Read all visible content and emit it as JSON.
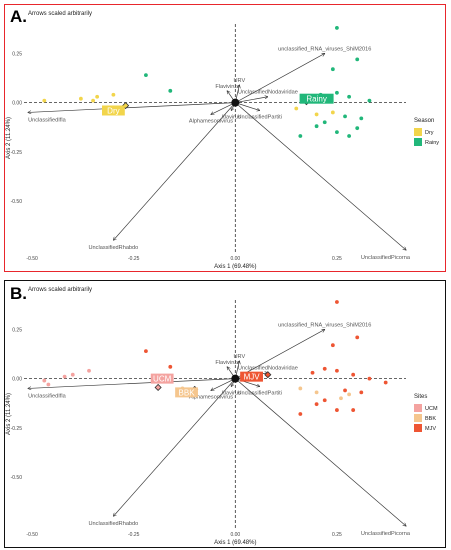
{
  "panels": [
    {
      "label": "A.",
      "border_color": "#e8262c",
      "legend": {
        "title": "Season",
        "entries": [
          {
            "name": "Dry",
            "color": "#f2d54b"
          },
          {
            "name": "Rainy",
            "color": "#21b77a"
          }
        ]
      }
    },
    {
      "label": "B.",
      "border_color": "#111111",
      "legend": {
        "title": "Sites",
        "entries": [
          {
            "name": "UCM",
            "color": "#f4a3a0"
          },
          {
            "name": "BBK",
            "color": "#f5c68e"
          },
          {
            "name": "MJV",
            "color": "#ee5533"
          }
        ]
      }
    }
  ],
  "chart_data": [
    {
      "type": "scatter",
      "title": "Arrows scaled arbitrarily",
      "xlabel": "Axis 1 (69.48%)",
      "ylabel": "Axis 2 (11.24%)",
      "xlim": [
        -0.52,
        0.42
      ],
      "ylim": [
        -0.76,
        0.4
      ],
      "xticks": [
        -0.5,
        -0.25,
        0.0,
        0.25
      ],
      "xtick_labels": [
        "-0.50",
        "-0.25",
        "0.00",
        "0.25"
      ],
      "yticks": [
        0.25,
        0.0,
        -0.25,
        -0.5
      ],
      "ytick_labels": [
        "0.25",
        "0.00",
        "-0.25",
        "-0.50"
      ],
      "grid": false,
      "reference_lines": {
        "x": 0,
        "y": 0,
        "style": "dashed"
      },
      "legend_position": "right",
      "series": [
        {
          "name": "Dry",
          "color": "#f2d54b",
          "points": [
            [
              -0.47,
              0.01
            ],
            [
              -0.38,
              0.02
            ],
            [
              -0.34,
              0.03
            ],
            [
              -0.35,
              0.01
            ],
            [
              -0.3,
              0.04
            ],
            [
              0.15,
              -0.03
            ],
            [
              0.2,
              -0.06
            ],
            [
              0.24,
              -0.05
            ]
          ]
        },
        {
          "name": "Rainy",
          "color": "#21b77a",
          "points": [
            [
              -0.22,
              0.14
            ],
            [
              -0.16,
              0.06
            ],
            [
              0.25,
              0.38
            ],
            [
              0.3,
              0.22
            ],
            [
              0.24,
              0.17
            ],
            [
              0.19,
              0.03
            ],
            [
              0.21,
              0.04
            ],
            [
              0.25,
              0.05
            ],
            [
              0.28,
              0.03
            ],
            [
              0.33,
              0.01
            ],
            [
              0.27,
              -0.07
            ],
            [
              0.31,
              -0.08
            ],
            [
              0.22,
              -0.1
            ],
            [
              0.2,
              -0.12
            ],
            [
              0.25,
              -0.15
            ],
            [
              0.16,
              -0.17
            ],
            [
              0.28,
              -0.17
            ],
            [
              0.3,
              -0.13
            ]
          ]
        }
      ],
      "centroids": [
        {
          "label": "Dry",
          "x": -0.3,
          "y": -0.04,
          "color": "#f2d54b",
          "diamond": [
            -0.27,
            -0.015
          ]
        },
        {
          "label": "Rainy",
          "x": 0.2,
          "y": 0.02,
          "color": "#21b77a",
          "diamond": [
            0.175,
            0.005
          ]
        }
      ],
      "vectors": [
        {
          "label": "unclassified_RNA_viruses_ShiM2016",
          "x": 0.22,
          "y": 0.25
        },
        {
          "label": "URV",
          "x": 0.01,
          "y": 0.09
        },
        {
          "label": "Flavivirus",
          "x": -0.02,
          "y": 0.06
        },
        {
          "label": "UnclassifiedNodaviridae",
          "x": 0.08,
          "y": 0.03
        },
        {
          "label": "UnclassifiedIfla",
          "x": -0.51,
          "y": -0.05
        },
        {
          "label": "Iflavirus",
          "x": -0.01,
          "y": -0.04
        },
        {
          "label": "UnclassifiedPartiti",
          "x": 0.06,
          "y": -0.04
        },
        {
          "label": "Alphamesonivirus",
          "x": -0.06,
          "y": -0.06
        },
        {
          "label": "UnclassifiedPicorna",
          "x": 0.42,
          "y": -0.75
        },
        {
          "label": "UnclassifiedRhabdo",
          "x": -0.3,
          "y": -0.7
        }
      ]
    },
    {
      "type": "scatter",
      "title": "Arrows scaled arbitrarily",
      "xlabel": "Axis 1 (69.48%)",
      "ylabel": "Axis 2 (11.24%)",
      "xlim": [
        -0.52,
        0.42
      ],
      "ylim": [
        -0.76,
        0.4
      ],
      "xticks": [
        -0.5,
        -0.25,
        0.0,
        0.25
      ],
      "xtick_labels": [
        "-0.50",
        "-0.25",
        "0.00",
        "0.25"
      ],
      "yticks": [
        0.25,
        0.0,
        -0.25,
        -0.5
      ],
      "ytick_labels": [
        "0.25",
        "0.00",
        "-0.25",
        "-0.50"
      ],
      "grid": false,
      "reference_lines": {
        "x": 0,
        "y": 0,
        "style": "dashed"
      },
      "legend_position": "right",
      "series": [
        {
          "name": "UCM",
          "color": "#f4a3a0",
          "points": [
            [
              -0.47,
              -0.01
            ],
            [
              -0.46,
              -0.03
            ],
            [
              -0.42,
              0.01
            ],
            [
              -0.4,
              0.02
            ],
            [
              -0.36,
              0.04
            ]
          ]
        },
        {
          "name": "BBK",
          "color": "#f5c68e",
          "points": [
            [
              -0.13,
              -0.05
            ],
            [
              0.16,
              -0.05
            ],
            [
              0.2,
              -0.07
            ],
            [
              0.26,
              -0.1
            ],
            [
              0.28,
              -0.08
            ]
          ]
        },
        {
          "name": "MJV",
          "color": "#ee5533",
          "points": [
            [
              -0.22,
              0.14
            ],
            [
              -0.16,
              0.06
            ],
            [
              0.25,
              0.39
            ],
            [
              0.3,
              0.21
            ],
            [
              0.24,
              0.17
            ],
            [
              0.19,
              0.03
            ],
            [
              0.22,
              0.05
            ],
            [
              0.25,
              0.04
            ],
            [
              0.29,
              0.02
            ],
            [
              0.33,
              0.0
            ],
            [
              0.27,
              -0.06
            ],
            [
              0.31,
              -0.07
            ],
            [
              0.22,
              -0.11
            ],
            [
              0.2,
              -0.13
            ],
            [
              0.25,
              -0.16
            ],
            [
              0.16,
              -0.18
            ],
            [
              0.29,
              -0.16
            ],
            [
              0.37,
              -0.02
            ]
          ]
        }
      ],
      "centroids": [
        {
          "label": "UCM",
          "x": -0.18,
          "y": 0.0,
          "color": "#f4a3a0",
          "diamond": [
            -0.19,
            -0.045
          ]
        },
        {
          "label": "BBK",
          "x": -0.12,
          "y": -0.07,
          "color": "#f5c68e",
          "diamond": [
            -0.1,
            -0.055
          ]
        },
        {
          "label": "MJV",
          "x": 0.04,
          "y": 0.01,
          "color": "#ee5533",
          "diamond": [
            0.08,
            0.02
          ]
        }
      ],
      "vectors": [
        {
          "label": "unclassified_RNA_viruses_ShiM2016",
          "x": 0.22,
          "y": 0.25
        },
        {
          "label": "URV",
          "x": 0.01,
          "y": 0.09
        },
        {
          "label": "Flavivirus",
          "x": -0.02,
          "y": 0.06
        },
        {
          "label": "UnclassifiedNodaviridae",
          "x": 0.08,
          "y": 0.03
        },
        {
          "label": "UnclassifiedIfla",
          "x": -0.51,
          "y": -0.05
        },
        {
          "label": "Iflavirus",
          "x": -0.01,
          "y": -0.04
        },
        {
          "label": "UnclassifiedPartiti",
          "x": 0.06,
          "y": -0.04
        },
        {
          "label": "Alphamesonivirus",
          "x": -0.06,
          "y": -0.06
        },
        {
          "label": "UnclassifiedPicorna",
          "x": 0.42,
          "y": -0.75
        },
        {
          "label": "UnclassifiedRhabdo",
          "x": -0.3,
          "y": -0.7
        }
      ]
    }
  ]
}
